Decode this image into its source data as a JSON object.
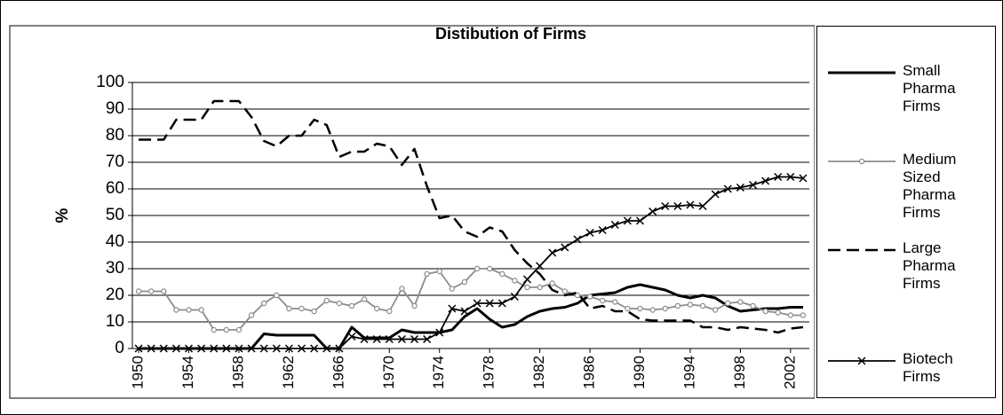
{
  "chart_data": {
    "type": "line",
    "title": "Distibution of Firms",
    "y_label": "%",
    "x": [
      1950,
      1951,
      1952,
      1953,
      1954,
      1955,
      1956,
      1957,
      1958,
      1959,
      1960,
      1961,
      1962,
      1963,
      1964,
      1965,
      1966,
      1967,
      1968,
      1969,
      1970,
      1971,
      1972,
      1973,
      1974,
      1975,
      1976,
      1977,
      1978,
      1979,
      1980,
      1981,
      1982,
      1983,
      1984,
      1985,
      1986,
      1987,
      1988,
      1989,
      1990,
      1991,
      1992,
      1993,
      1994,
      1995,
      1996,
      1997,
      1998,
      1999,
      2000,
      2001,
      2002,
      2003
    ],
    "xlim": [
      1949.5,
      2003.5
    ],
    "xticks": [
      1950,
      1954,
      1958,
      1962,
      1966,
      1970,
      1974,
      1978,
      1982,
      1986,
      1990,
      1994,
      1998,
      2002
    ],
    "ylim": [
      0,
      100
    ],
    "yticks": [
      0,
      10,
      20,
      30,
      40,
      50,
      60,
      70,
      80,
      90,
      100
    ],
    "grid": true,
    "legend": "right",
    "series": [
      {
        "name": "Small Pharma Firms",
        "color": "#000000",
        "width": 3,
        "dash": "solid",
        "marker": "none",
        "values": [
          0,
          0,
          0,
          0,
          0,
          0,
          0,
          0,
          0,
          0,
          5.5,
          5,
          5,
          5,
          5,
          0,
          0,
          8,
          4,
          4,
          4,
          7,
          6,
          6,
          6,
          7,
          12,
          15,
          11,
          8,
          9,
          12,
          14,
          15,
          15.5,
          17,
          20,
          20.5,
          21,
          23,
          24,
          23,
          22,
          20,
          19,
          20,
          19,
          16,
          14,
          14.5,
          15,
          15,
          15.5,
          15.5
        ]
      },
      {
        "name": "Medium Sized Pharma Firms",
        "color": "#8c8c8c",
        "width": 1.8,
        "dash": "solid",
        "marker": "circle",
        "values": [
          21.5,
          21.5,
          21.5,
          14.5,
          14.5,
          14.5,
          7,
          7,
          7,
          12.5,
          17,
          20,
          15,
          15,
          14,
          18,
          17,
          16,
          18.5,
          15,
          14,
          22.5,
          16,
          28,
          29,
          22.5,
          25,
          30,
          30,
          28,
          25.5,
          23,
          23,
          24.5,
          21.5,
          20,
          19.5,
          18,
          17.5,
          15,
          15,
          14.5,
          15,
          16,
          16.5,
          16,
          14.5,
          17,
          17.5,
          16,
          14,
          13.5,
          12.5,
          12.5
        ]
      },
      {
        "name": "Large Pharma Firms",
        "color": "#000000",
        "width": 2.5,
        "dash": "dashed",
        "marker": "none",
        "values": [
          78.5,
          78.5,
          78.5,
          86,
          86,
          86,
          93,
          93,
          93,
          87,
          78,
          76,
          80,
          80,
          86,
          84,
          72,
          74,
          74,
          77,
          76,
          69,
          75,
          61,
          49,
          50,
          44,
          42,
          45.5,
          44,
          37,
          32,
          28,
          22,
          20,
          21,
          15,
          16,
          14,
          14,
          11,
          10.5,
          10.5,
          10.5,
          10.5,
          8,
          8,
          7,
          8,
          7.5,
          7,
          6,
          7.5,
          8
        ]
      },
      {
        "name": "Biotech Firms",
        "color": "#000000",
        "width": 1.8,
        "dash": "solid",
        "marker": "x",
        "values": [
          0,
          0,
          0,
          0,
          0,
          0,
          0,
          0,
          0,
          0,
          0,
          0,
          0,
          0,
          0,
          0,
          0,
          4.5,
          3.5,
          3.5,
          3.5,
          3.5,
          3.5,
          3.5,
          6,
          15,
          14,
          17,
          17,
          17,
          19.5,
          26,
          31,
          36,
          38,
          41,
          43.5,
          44.5,
          46.5,
          48,
          48,
          51.5,
          53.5,
          53.5,
          54,
          53.5,
          58,
          60,
          60.5,
          61.5,
          63,
          64.5,
          64.5,
          64
        ]
      }
    ]
  }
}
